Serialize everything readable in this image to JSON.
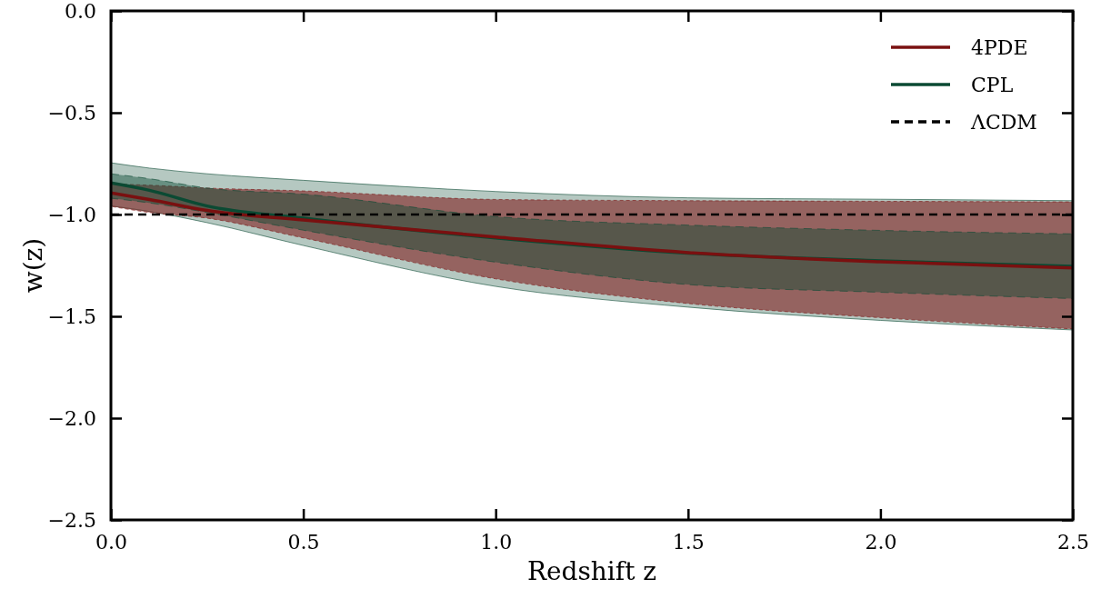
{
  "chart_data": {
    "type": "line",
    "xlabel": "Redshift z",
    "ylabel": "w(z)",
    "x": [
      0,
      0.1,
      0.25,
      0.5,
      1,
      1.5,
      2,
      2.5
    ],
    "xlim": [
      0,
      2.5
    ],
    "xticks": [
      {
        "value": 0,
        "label": "0.0"
      },
      0.5,
      {
        "value": 1,
        "label": "1.0"
      },
      1.5,
      {
        "value": 2,
        "label": "2.0"
      },
      2.5
    ],
    "ylim": [
      -2.5,
      0
    ],
    "yticks": [
      {
        "value": -2.5,
        "label": "−2.5"
      },
      {
        "value": -2,
        "label": "−2.0"
      },
      {
        "value": -1.5,
        "label": "−1.5"
      },
      {
        "value": -1,
        "label": "−1.0"
      },
      {
        "value": -0.5,
        "label": "−0.5"
      },
      {
        "value": 0,
        "label": "0.0"
      }
    ],
    "series": [
      {
        "name": "4PDE",
        "color": "#7a1010",
        "values": [
          -0.894,
          -0.926,
          -0.98,
          -1.027,
          -1.11,
          -1.187,
          -1.232,
          -1.262
        ],
        "lower": [
          -0.96,
          -0.99,
          -1.018,
          -1.115,
          -1.316,
          -1.437,
          -1.507,
          -1.562
        ],
        "upper": [
          -0.85,
          -0.856,
          -0.87,
          -0.884,
          -0.926,
          -0.932,
          -0.935,
          -0.938
        ]
      },
      {
        "name": "CPL",
        "color": "#0b4a33",
        "values": [
          -0.845,
          -0.881,
          -0.958,
          -1.018,
          -1.115,
          -1.19,
          -1.228,
          -1.254
        ],
        "lower": [
          -0.958,
          -0.985,
          -1.04,
          -1.152,
          -1.353,
          -1.455,
          -1.52,
          -1.567
        ],
        "upper": [
          -0.746,
          -0.772,
          -0.8,
          -0.832,
          -0.887,
          -0.918,
          -0.925,
          -0.932
        ]
      },
      {
        "color": "#0b4a33",
        "line_style": "dashed",
        "values": [
          null,
          null,
          null,
          null,
          null,
          null,
          null,
          null
        ],
        "lower": [
          -0.92,
          -0.943,
          -0.99,
          -1.077,
          -1.234,
          -1.344,
          -1.382,
          -1.413
        ],
        "upper": [
          -0.8,
          -0.824,
          -0.87,
          -0.9,
          -1.01,
          -1.052,
          -1.078,
          -1.095
        ]
      }
    ],
    "ref_lines": [
      {
        "axis": "y",
        "value": -1,
        "label": "ΛCDM",
        "color": "#000000",
        "line_style": "dashed"
      }
    ],
    "legend": "top right",
    "grid": false
  }
}
